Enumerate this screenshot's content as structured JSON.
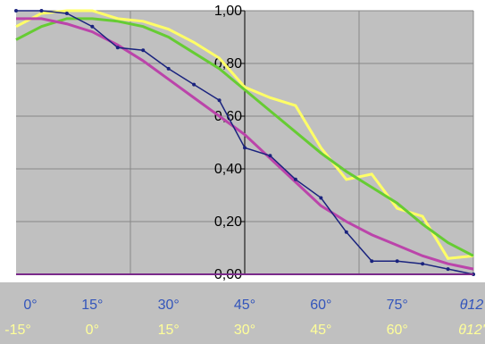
{
  "chart_data": {
    "type": "line",
    "x": [
      0,
      5,
      10,
      15,
      20,
      25,
      30,
      35,
      40,
      45,
      50,
      55,
      60,
      65,
      70,
      75,
      80,
      85,
      90
    ],
    "series": [
      {
        "color": "#1a237e",
        "marker": true,
        "values": [
          1.0,
          1.0,
          0.99,
          0.94,
          0.86,
          0.85,
          0.78,
          0.72,
          0.66,
          0.48,
          0.45,
          0.36,
          0.29,
          0.16,
          0.05,
          0.05,
          0.04,
          0.02,
          0.0
        ]
      },
      {
        "color": "#ffff66",
        "marker": false,
        "values": [
          0.94,
          0.99,
          1.0,
          1.0,
          0.97,
          0.96,
          0.93,
          0.88,
          0.82,
          0.71,
          0.67,
          0.64,
          0.48,
          0.36,
          0.38,
          0.25,
          0.22,
          0.06,
          0.07
        ]
      },
      {
        "color": "#66cc33",
        "marker": false,
        "values": [
          0.89,
          0.94,
          0.97,
          0.97,
          0.96,
          0.94,
          0.9,
          0.84,
          0.78,
          0.7,
          0.62,
          0.54,
          0.46,
          0.39,
          0.33,
          0.27,
          0.19,
          0.12,
          0.07
        ]
      },
      {
        "color": "#bb44aa",
        "marker": false,
        "values": [
          0.97,
          0.97,
          0.95,
          0.92,
          0.87,
          0.81,
          0.74,
          0.67,
          0.6,
          0.53,
          0.44,
          0.35,
          0.26,
          0.2,
          0.15,
          0.11,
          0.07,
          0.04,
          0.02
        ]
      }
    ],
    "xlim": [
      0,
      90
    ],
    "xticks": [
      {
        "value": 0,
        "label": "0°"
      },
      {
        "value": 15,
        "label": "15°"
      },
      {
        "value": 30,
        "label": "30°"
      },
      {
        "value": 45,
        "label": "45°"
      },
      {
        "value": 60,
        "label": "60°"
      },
      {
        "value": 75,
        "label": "75°"
      }
    ],
    "x_label": "θ12",
    "x2lim": [
      -15,
      75
    ],
    "x2ticks": [
      {
        "value": -15,
        "label": "-15°"
      },
      {
        "value": 0,
        "label": "0°"
      },
      {
        "value": 15,
        "label": "15°"
      },
      {
        "value": 30,
        "label": "30°"
      },
      {
        "value": 45,
        "label": "45°"
      },
      {
        "value": 60,
        "label": "60°"
      }
    ],
    "x2_label": "θ12'",
    "xgrid_lines": [
      22.5,
      45,
      67.5
    ],
    "ylim": [
      0,
      1
    ],
    "yticks": [
      {
        "value": 0,
        "label": "0,00"
      },
      {
        "value": 0.2,
        "label": "0,20"
      },
      {
        "value": 0.4,
        "label": "0,40"
      },
      {
        "value": 0.6,
        "label": "0,60"
      },
      {
        "value": 0.8,
        "label": "0,80"
      },
      {
        "value": 1,
        "label": "1,00"
      }
    ],
    "y_axis_at": 45,
    "grid": true
  }
}
